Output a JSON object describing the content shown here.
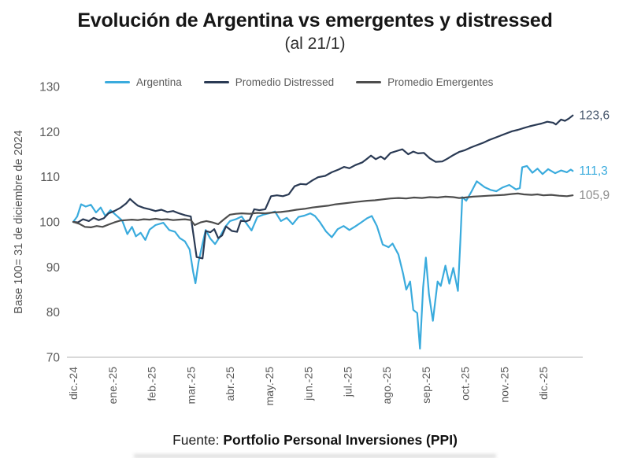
{
  "title": "Evolución de Argentina vs emergentes y distressed",
  "subtitle": "(al 21/1)",
  "legend": {
    "items": [
      {
        "label": "Argentina",
        "color": "#3aabdd"
      },
      {
        "label": "Promedio Distressed",
        "color": "#2a3a54"
      },
      {
        "label": "Promedio Emergentes",
        "color": "#4d4d4d"
      }
    ]
  },
  "footer": {
    "prefix": "Fuente:",
    "source": "Portfolio Personal Inversiones (PPI)"
  },
  "chart_data": {
    "type": "line",
    "title": "Evolución de Argentina vs emergentes y distressed (al 21/1)",
    "ylabel": "Base 100= 31 de diciembre de 2024",
    "xlabel": "",
    "ylim": [
      70,
      130
    ],
    "yticks": [
      70,
      80,
      90,
      100,
      110,
      120,
      130
    ],
    "xlim": [
      0,
      12.75
    ],
    "x_tick_labels": [
      "dic.-24",
      "ene.-25",
      "feb.-25",
      "mar.-25",
      "abr.-25",
      "may.-25",
      "jun.-25",
      "jul.-25",
      "ago.-25",
      "sep.-25",
      "oct.-25",
      "nov.-25",
      "dic.-25"
    ],
    "grid": false,
    "legend_position": "top",
    "axis_text_color": "#595959",
    "axis_line_color": "#d9d9d9",
    "series": [
      {
        "name": "Argentina",
        "color": "#3aabdd",
        "end_label": "111,3",
        "end_label_color": "#3aabdd",
        "points": [
          [
            0,
            100
          ],
          [
            0.1,
            101.2
          ],
          [
            0.2,
            103.9
          ],
          [
            0.32,
            103.4
          ],
          [
            0.45,
            103.8
          ],
          [
            0.58,
            102.1
          ],
          [
            0.7,
            103.2
          ],
          [
            0.82,
            101.3
          ],
          [
            0.95,
            102.6
          ],
          [
            1.08,
            101.6
          ],
          [
            1.25,
            100.3
          ],
          [
            1.38,
            97.3
          ],
          [
            1.5,
            98.9
          ],
          [
            1.6,
            96.8
          ],
          [
            1.72,
            97.6
          ],
          [
            1.84,
            96.0
          ],
          [
            1.95,
            98.3
          ],
          [
            2.1,
            99.3
          ],
          [
            2.3,
            99.8
          ],
          [
            2.45,
            98.2
          ],
          [
            2.6,
            97.8
          ],
          [
            2.72,
            96.4
          ],
          [
            2.85,
            95.7
          ],
          [
            2.97,
            93.9
          ],
          [
            3.06,
            89.0
          ],
          [
            3.12,
            86.4
          ],
          [
            3.2,
            91.2
          ],
          [
            3.3,
            95.2
          ],
          [
            3.38,
            98.2
          ],
          [
            3.5,
            96.3
          ],
          [
            3.62,
            95.1
          ],
          [
            3.75,
            96.8
          ],
          [
            3.88,
            98.9
          ],
          [
            4.0,
            100.2
          ],
          [
            4.15,
            100.6
          ],
          [
            4.3,
            101.2
          ],
          [
            4.45,
            99.3
          ],
          [
            4.55,
            98.1
          ],
          [
            4.7,
            101.1
          ],
          [
            4.85,
            101.6
          ],
          [
            5.0,
            101.9
          ],
          [
            5.15,
            102.3
          ],
          [
            5.3,
            100.2
          ],
          [
            5.45,
            100.9
          ],
          [
            5.6,
            99.5
          ],
          [
            5.75,
            101.1
          ],
          [
            5.9,
            101.4
          ],
          [
            6.05,
            101.9
          ],
          [
            6.17,
            101.3
          ],
          [
            6.3,
            99.9
          ],
          [
            6.45,
            97.9
          ],
          [
            6.6,
            96.6
          ],
          [
            6.75,
            98.4
          ],
          [
            6.9,
            99.1
          ],
          [
            7.05,
            98.2
          ],
          [
            7.2,
            99.0
          ],
          [
            7.35,
            99.9
          ],
          [
            7.5,
            100.8
          ],
          [
            7.62,
            101.3
          ],
          [
            7.75,
            99.1
          ],
          [
            7.9,
            95.0
          ],
          [
            8.05,
            94.4
          ],
          [
            8.15,
            95.2
          ],
          [
            8.3,
            92.8
          ],
          [
            8.42,
            88.5
          ],
          [
            8.5,
            85.0
          ],
          [
            8.6,
            86.8
          ],
          [
            8.68,
            80.5
          ],
          [
            8.78,
            79.8
          ],
          [
            8.85,
            71.9
          ],
          [
            8.93,
            85.5
          ],
          [
            9.0,
            92.1
          ],
          [
            9.08,
            84.0
          ],
          [
            9.18,
            78.1
          ],
          [
            9.3,
            86.8
          ],
          [
            9.38,
            85.8
          ],
          [
            9.5,
            90.3
          ],
          [
            9.6,
            86.3
          ],
          [
            9.7,
            89.8
          ],
          [
            9.82,
            84.7
          ],
          [
            9.88,
            95.5
          ],
          [
            9.93,
            105.5
          ],
          [
            10.03,
            104.7
          ],
          [
            10.15,
            106.5
          ],
          [
            10.3,
            109.0
          ],
          [
            10.5,
            107.7
          ],
          [
            10.65,
            107.1
          ],
          [
            10.8,
            106.8
          ],
          [
            10.95,
            107.6
          ],
          [
            11.13,
            108.2
          ],
          [
            11.3,
            107.2
          ],
          [
            11.4,
            107.5
          ],
          [
            11.46,
            112.1
          ],
          [
            11.58,
            112.4
          ],
          [
            11.72,
            110.9
          ],
          [
            11.85,
            111.8
          ],
          [
            11.98,
            110.6
          ],
          [
            12.12,
            111.7
          ],
          [
            12.3,
            110.8
          ],
          [
            12.45,
            111.4
          ],
          [
            12.6,
            111.0
          ],
          [
            12.7,
            111.6
          ],
          [
            12.75,
            111.3
          ]
        ]
      },
      {
        "name": "Promedio Distressed",
        "color": "#2a3a54",
        "end_label": "123,6",
        "end_label_color": "#44546a",
        "points": [
          [
            0,
            100
          ],
          [
            0.12,
            99.9
          ],
          [
            0.25,
            100.6
          ],
          [
            0.4,
            100.2
          ],
          [
            0.52,
            100.9
          ],
          [
            0.65,
            100.4
          ],
          [
            0.78,
            100.8
          ],
          [
            0.9,
            101.9
          ],
          [
            1.05,
            102.4
          ],
          [
            1.2,
            103.1
          ],
          [
            1.35,
            104.1
          ],
          [
            1.45,
            105.1
          ],
          [
            1.55,
            104.3
          ],
          [
            1.65,
            103.6
          ],
          [
            1.8,
            103.1
          ],
          [
            1.95,
            102.8
          ],
          [
            2.1,
            102.4
          ],
          [
            2.25,
            102.7
          ],
          [
            2.4,
            102.2
          ],
          [
            2.55,
            102.4
          ],
          [
            2.7,
            101.9
          ],
          [
            2.85,
            101.5
          ],
          [
            3.0,
            101.2
          ],
          [
            3.08,
            96.5
          ],
          [
            3.15,
            92.2
          ],
          [
            3.3,
            91.9
          ],
          [
            3.38,
            98.0
          ],
          [
            3.5,
            97.7
          ],
          [
            3.6,
            98.4
          ],
          [
            3.7,
            96.4
          ],
          [
            3.8,
            97.0
          ],
          [
            3.9,
            99.0
          ],
          [
            4.05,
            98.0
          ],
          [
            4.18,
            97.8
          ],
          [
            4.28,
            100.3
          ],
          [
            4.4,
            100.1
          ],
          [
            4.5,
            100.4
          ],
          [
            4.62,
            102.8
          ],
          [
            4.75,
            102.6
          ],
          [
            4.9,
            102.8
          ],
          [
            5.05,
            105.7
          ],
          [
            5.2,
            105.9
          ],
          [
            5.35,
            105.7
          ],
          [
            5.5,
            106.1
          ],
          [
            5.65,
            107.9
          ],
          [
            5.8,
            108.4
          ],
          [
            5.95,
            108.3
          ],
          [
            6.1,
            109.2
          ],
          [
            6.25,
            109.9
          ],
          [
            6.43,
            110.2
          ],
          [
            6.6,
            111.0
          ],
          [
            6.77,
            111.6
          ],
          [
            6.91,
            112.2
          ],
          [
            7.05,
            111.9
          ],
          [
            7.2,
            112.6
          ],
          [
            7.38,
            113.2
          ],
          [
            7.5,
            114.0
          ],
          [
            7.6,
            114.7
          ],
          [
            7.72,
            113.9
          ],
          [
            7.85,
            114.5
          ],
          [
            7.95,
            113.9
          ],
          [
            8.1,
            115.3
          ],
          [
            8.25,
            115.7
          ],
          [
            8.4,
            116.1
          ],
          [
            8.55,
            115.0
          ],
          [
            8.68,
            115.6
          ],
          [
            8.8,
            115.2
          ],
          [
            8.95,
            115.3
          ],
          [
            9.1,
            114.1
          ],
          [
            9.25,
            113.3
          ],
          [
            9.42,
            113.4
          ],
          [
            9.55,
            114.0
          ],
          [
            9.7,
            114.8
          ],
          [
            9.85,
            115.5
          ],
          [
            10.0,
            115.9
          ],
          [
            10.15,
            116.5
          ],
          [
            10.3,
            117.0
          ],
          [
            10.45,
            117.5
          ],
          [
            10.6,
            118.1
          ],
          [
            10.75,
            118.6
          ],
          [
            10.9,
            119.1
          ],
          [
            11.05,
            119.6
          ],
          [
            11.2,
            120.1
          ],
          [
            11.35,
            120.4
          ],
          [
            11.5,
            120.8
          ],
          [
            11.65,
            121.2
          ],
          [
            11.8,
            121.5
          ],
          [
            11.95,
            121.8
          ],
          [
            12.1,
            122.2
          ],
          [
            12.25,
            122.0
          ],
          [
            12.32,
            121.6
          ],
          [
            12.45,
            122.7
          ],
          [
            12.55,
            122.4
          ],
          [
            12.65,
            122.9
          ],
          [
            12.75,
            123.6
          ]
        ]
      },
      {
        "name": "Promedio Emergentes",
        "color": "#4d4d4d",
        "end_label": "105,9",
        "end_label_color": "#8c8c8c",
        "points": [
          [
            0,
            100
          ],
          [
            0.15,
            99.6
          ],
          [
            0.3,
            98.9
          ],
          [
            0.45,
            98.8
          ],
          [
            0.6,
            99.1
          ],
          [
            0.75,
            98.9
          ],
          [
            0.9,
            99.4
          ],
          [
            1.05,
            99.9
          ],
          [
            1.2,
            100.3
          ],
          [
            1.35,
            100.4
          ],
          [
            1.5,
            100.5
          ],
          [
            1.65,
            100.4
          ],
          [
            1.8,
            100.6
          ],
          [
            1.95,
            100.5
          ],
          [
            2.1,
            100.7
          ],
          [
            2.25,
            100.5
          ],
          [
            2.4,
            100.6
          ],
          [
            2.55,
            100.4
          ],
          [
            2.7,
            100.5
          ],
          [
            2.85,
            100.6
          ],
          [
            3.0,
            100.4
          ],
          [
            3.1,
            99.3
          ],
          [
            3.25,
            99.9
          ],
          [
            3.4,
            100.2
          ],
          [
            3.55,
            99.9
          ],
          [
            3.7,
            99.5
          ],
          [
            3.85,
            100.6
          ],
          [
            4.0,
            101.6
          ],
          [
            4.15,
            101.8
          ],
          [
            4.3,
            101.9
          ],
          [
            4.5,
            101.8
          ],
          [
            4.7,
            102.0
          ],
          [
            4.9,
            101.9
          ],
          [
            5.1,
            102.1
          ],
          [
            5.3,
            102.2
          ],
          [
            5.5,
            102.4
          ],
          [
            5.7,
            102.7
          ],
          [
            5.9,
            102.9
          ],
          [
            6.1,
            103.2
          ],
          [
            6.3,
            103.4
          ],
          [
            6.5,
            103.6
          ],
          [
            6.7,
            103.9
          ],
          [
            6.9,
            104.1
          ],
          [
            7.1,
            104.3
          ],
          [
            7.3,
            104.5
          ],
          [
            7.5,
            104.7
          ],
          [
            7.7,
            104.8
          ],
          [
            7.9,
            105.0
          ],
          [
            8.1,
            105.2
          ],
          [
            8.3,
            105.3
          ],
          [
            8.5,
            105.2
          ],
          [
            8.7,
            105.4
          ],
          [
            8.9,
            105.3
          ],
          [
            9.1,
            105.5
          ],
          [
            9.3,
            105.4
          ],
          [
            9.5,
            105.6
          ],
          [
            9.7,
            105.5
          ],
          [
            9.85,
            105.3
          ],
          [
            10.0,
            105.4
          ],
          [
            10.2,
            105.6
          ],
          [
            10.4,
            105.7
          ],
          [
            10.6,
            105.8
          ],
          [
            10.8,
            105.9
          ],
          [
            11.0,
            106.0
          ],
          [
            11.2,
            106.2
          ],
          [
            11.35,
            106.3
          ],
          [
            11.5,
            106.1
          ],
          [
            11.7,
            106.0
          ],
          [
            11.85,
            106.1
          ],
          [
            12.0,
            105.9
          ],
          [
            12.2,
            106.0
          ],
          [
            12.4,
            105.8
          ],
          [
            12.6,
            105.7
          ],
          [
            12.75,
            105.9
          ]
        ]
      }
    ]
  }
}
